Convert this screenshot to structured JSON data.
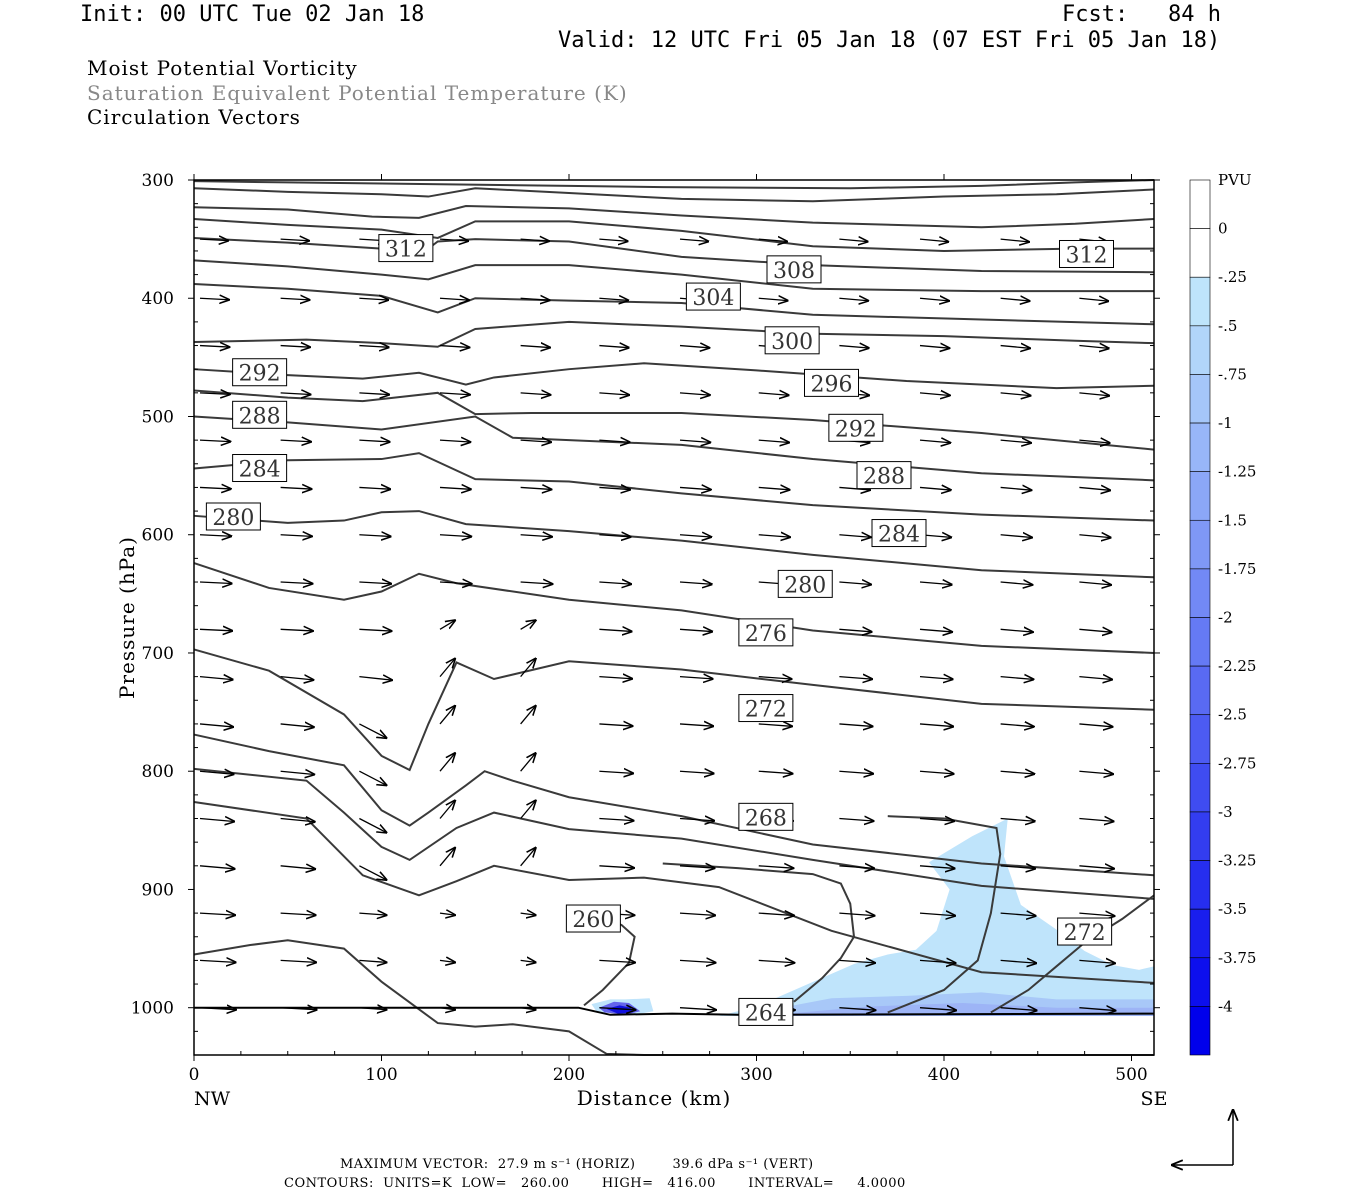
{
  "header": {
    "init": "Init: 00 UTC Tue 02 Jan 18",
    "fcst": "Fcst:   84 h",
    "valid": "Valid: 12 UTC Fri 05 Jan 18 (07 EST Fri 05 Jan 18)",
    "fields": [
      "Moist Potential Vorticity",
      "Saturation Equivalent Potential Temperature (K)",
      "Circulation Vectors"
    ]
  },
  "footer": {
    "max_vector": "MAXIMUM VECTOR:  27.9 m s⁻¹ (HORIZ)        39.6 dPa s⁻¹ (VERT)",
    "contours": "CONTOURS:  UNITS=K  LOW=   260.00       HIGH=   416.00       INTERVAL=     4.0000"
  },
  "colors": {
    "contour": "#3a3a3a",
    "pv_shades": [
      "#bfe4fb",
      "#a8c8f8",
      "#9db4f6",
      "#8fa0f4",
      "#808cf1",
      "#7078ee",
      "#6464ec",
      "#5050e8",
      "#4040e6",
      "#3030e2",
      "#2020e0",
      "#1010de",
      "#0000dc"
    ]
  },
  "chart_data": {
    "type": "cross-section",
    "xlabel": "Distance (km)",
    "ylabel": "Pressure (hPa)",
    "xlim": [
      0,
      512
    ],
    "ylim": [
      1040,
      300
    ],
    "x_ticks": [
      0,
      100,
      200,
      300,
      400,
      500
    ],
    "y_ticks": [
      300,
      400,
      500,
      600,
      700,
      800,
      900,
      1000
    ],
    "x_end_labels": {
      "left": "NW",
      "right": "SE"
    },
    "colorbar": {
      "title": "PVU",
      "labels": [
        "0",
        "-.25",
        "-.5",
        "-.75",
        "-1",
        "-1.25",
        "-1.5",
        "-1.75",
        "-2",
        "-2.25",
        "-2.5",
        "-2.75",
        "-3",
        "-3.25",
        "-3.5",
        "-3.75",
        "-4"
      ],
      "levels": [
        0.25,
        0,
        -0.25,
        -0.5,
        -0.75,
        -1,
        -1.25,
        -1.5,
        -1.75,
        -2,
        -2.25,
        -2.5,
        -2.75,
        -3,
        -3.25,
        -3.5,
        -3.75,
        -4,
        -4.25
      ]
    },
    "contour_labels": [
      {
        "text": "312",
        "x": 113,
        "p": 358
      },
      {
        "text": "312",
        "x": 476,
        "p": 363
      },
      {
        "text": "308",
        "x": 320,
        "p": 376
      },
      {
        "text": "304",
        "x": 277,
        "p": 399
      },
      {
        "text": "300",
        "x": 319,
        "p": 436
      },
      {
        "text": "296",
        "x": 340,
        "p": 472
      },
      {
        "text": "292",
        "x": 35,
        "p": 463
      },
      {
        "text": "292",
        "x": 353,
        "p": 510
      },
      {
        "text": "288",
        "x": 35,
        "p": 499
      },
      {
        "text": "288",
        "x": 368,
        "p": 550
      },
      {
        "text": "284",
        "x": 35,
        "p": 544
      },
      {
        "text": "284",
        "x": 376,
        "p": 599
      },
      {
        "text": "280",
        "x": 21,
        "p": 585
      },
      {
        "text": "280",
        "x": 326,
        "p": 642
      },
      {
        "text": "276",
        "x": 305,
        "p": 683
      },
      {
        "text": "272",
        "x": 305,
        "p": 747
      },
      {
        "text": "272",
        "x": 475,
        "p": 936
      },
      {
        "text": "268",
        "x": 305,
        "p": 839
      },
      {
        "text": "264",
        "x": 305,
        "p": 1004
      },
      {
        "text": "260",
        "x": 213,
        "p": 925
      }
    ]
  }
}
